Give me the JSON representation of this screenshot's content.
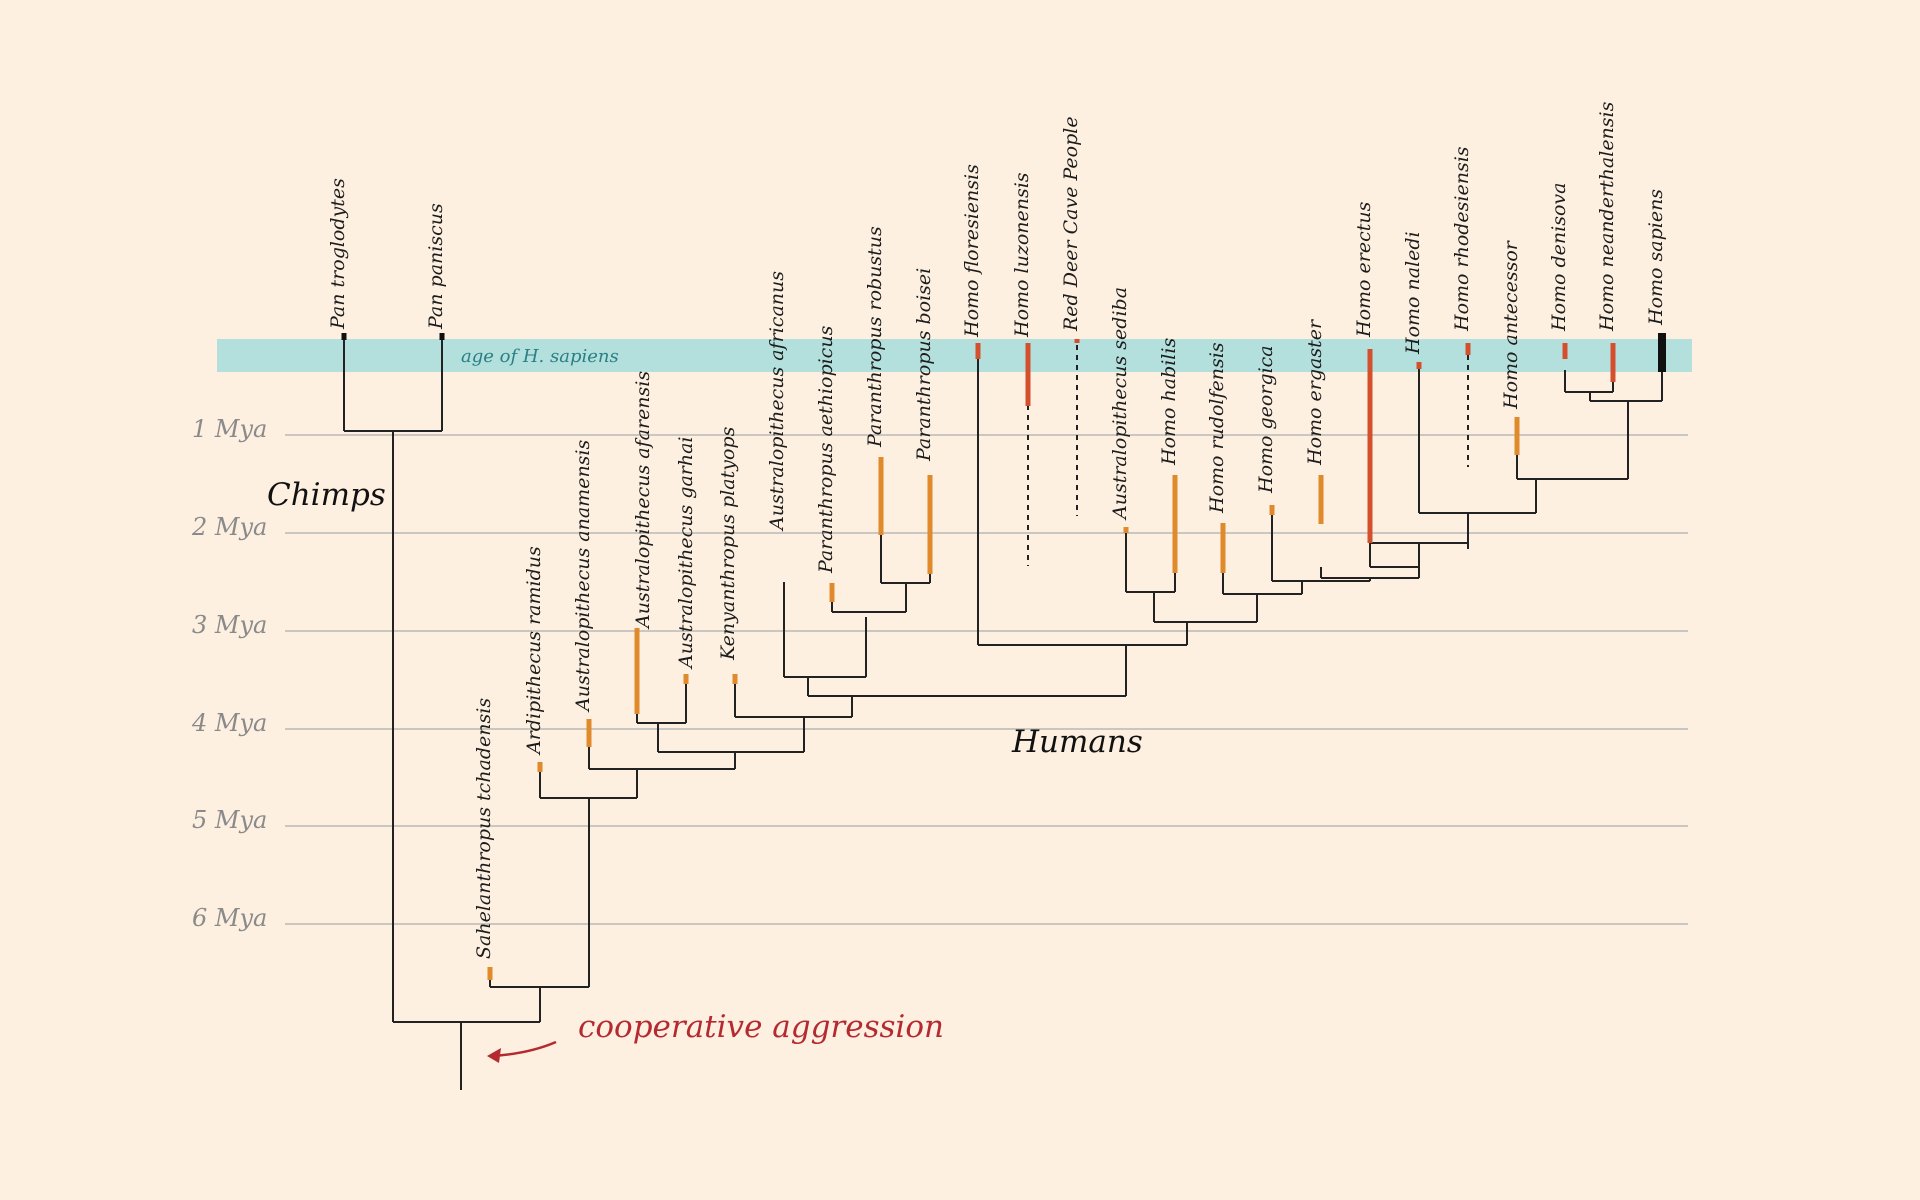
{
  "band": {
    "label": "age of H. sapiens",
    "color": "#b3e0dc"
  },
  "axis": {
    "ticks": [
      {
        "label": "1 Mya",
        "value": 1
      },
      {
        "label": "2 Mya",
        "value": 2
      },
      {
        "label": "3 Mya",
        "value": 3
      },
      {
        "label": "4 Mya",
        "value": 4
      },
      {
        "label": "5 Mya",
        "value": 5
      },
      {
        "label": "6 Mya",
        "value": 6
      }
    ]
  },
  "groups": {
    "chimps": "Chimps",
    "humans": "Humans"
  },
  "annotation": {
    "label": "cooperative aggression",
    "color": "#b52a31"
  },
  "colors": {
    "early_range": "#e08a2c",
    "homo_range": "#d4502c",
    "sapiens_range": "#111111",
    "line": "#222222",
    "grid": "#b9b9b9"
  },
  "species": [
    {
      "name": "Pan troglodytes",
      "range": "black"
    },
    {
      "name": "Pan paniscus",
      "range": "black"
    },
    {
      "name": "Sahelanthropus tchadensis",
      "range": "orange"
    },
    {
      "name": "Ardipithecus ramidus",
      "range": "orange"
    },
    {
      "name": "Australopithecus anamensis",
      "range": "orange"
    },
    {
      "name": "Australopithecus afarensis",
      "range": "orange"
    },
    {
      "name": "Australopithecus garhai",
      "range": "orange"
    },
    {
      "name": "Kenyanthropus platyops",
      "range": "orange"
    },
    {
      "name": "Australopithecus africanus",
      "range": "orange"
    },
    {
      "name": "Paranthropus aethiopicus",
      "range": "orange"
    },
    {
      "name": "Paranthropus robustus",
      "range": "orange"
    },
    {
      "name": "Paranthropus boisei",
      "range": "orange"
    },
    {
      "name": "Homo floresiensis",
      "range": "red"
    },
    {
      "name": "Homo luzonensis",
      "range": "red"
    },
    {
      "name": "Red Deer Cave People",
      "range": "red"
    },
    {
      "name": "Australopithecus sediba",
      "range": "orange"
    },
    {
      "name": "Homo habilis",
      "range": "orange"
    },
    {
      "name": "Homo rudolfensis",
      "range": "orange"
    },
    {
      "name": "Homo georgica",
      "range": "orange"
    },
    {
      "name": "Homo ergaster",
      "range": "orange"
    },
    {
      "name": "Homo erectus",
      "range": "red"
    },
    {
      "name": "Homo naledi",
      "range": "red"
    },
    {
      "name": "Homo rhodesiensis",
      "range": "red"
    },
    {
      "name": "Homo antecessor",
      "range": "orange"
    },
    {
      "name": "Homo denisova",
      "range": "red"
    },
    {
      "name": "Homo neanderthalensis",
      "range": "red"
    },
    {
      "name": "Homo sapiens",
      "range": "black"
    }
  ]
}
